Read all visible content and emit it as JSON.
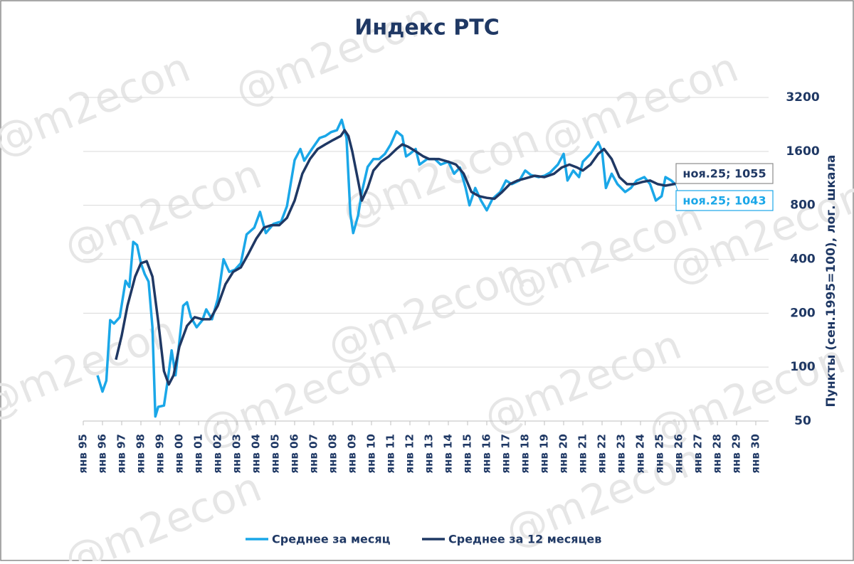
{
  "chart_data": {
    "type": "line",
    "title": "Индекс РТС",
    "watermark": "@m2econ",
    "y_label": "Пункты (сен.1995=100), лог. шкала",
    "log_scale": true,
    "grid": true,
    "legend": "bottom",
    "xlim": [
      1995,
      2030
    ],
    "xticks": [
      {
        "value": 1995,
        "label": "янв 95"
      },
      {
        "value": 1996,
        "label": "янв 96"
      },
      {
        "value": 1997,
        "label": "янв 97"
      },
      {
        "value": 1998,
        "label": "янв 98"
      },
      {
        "value": 1999,
        "label": "янв 99"
      },
      {
        "value": 2000,
        "label": "янв 00"
      },
      {
        "value": 2001,
        "label": "янв 01"
      },
      {
        "value": 2002,
        "label": "янв 02"
      },
      {
        "value": 2003,
        "label": "янв 03"
      },
      {
        "value": 2004,
        "label": "янв 04"
      },
      {
        "value": 2005,
        "label": "янв 05"
      },
      {
        "value": 2006,
        "label": "янв 06"
      },
      {
        "value": 2007,
        "label": "янв 07"
      },
      {
        "value": 2008,
        "label": "янв 08"
      },
      {
        "value": 2009,
        "label": "янв 09"
      },
      {
        "value": 2010,
        "label": "янв 10"
      },
      {
        "value": 2011,
        "label": "янв 11"
      },
      {
        "value": 2012,
        "label": "янв 12"
      },
      {
        "value": 2013,
        "label": "янв 13"
      },
      {
        "value": 2014,
        "label": "янв 14"
      },
      {
        "value": 2015,
        "label": "янв 15"
      },
      {
        "value": 2016,
        "label": "янв 16"
      },
      {
        "value": 2017,
        "label": "янв 17"
      },
      {
        "value": 2018,
        "label": "янв 18"
      },
      {
        "value": 2019,
        "label": "янв 19"
      },
      {
        "value": 2020,
        "label": "янв 20"
      },
      {
        "value": 2021,
        "label": "янв 21"
      },
      {
        "value": 2022,
        "label": "янв 22"
      },
      {
        "value": 2023,
        "label": "янв 23"
      },
      {
        "value": 2024,
        "label": "янв 24"
      },
      {
        "value": 2025,
        "label": "янв 25"
      },
      {
        "value": 2026,
        "label": "янв 26"
      },
      {
        "value": 2027,
        "label": "янв 27"
      },
      {
        "value": 2028,
        "label": "янв 28"
      },
      {
        "value": 2029,
        "label": "янв 29"
      },
      {
        "value": 2030,
        "label": "янв 30"
      }
    ],
    "ylim": [
      50,
      3200
    ],
    "yticks": [
      50,
      100,
      200,
      400,
      800,
      1600,
      3200
    ],
    "series": [
      {
        "name": "Среднее за месяц",
        "color": "#1aa7e8",
        "x": [
          1995.74,
          1996.0,
          1996.2,
          1996.4,
          1996.6,
          1996.9,
          1997.2,
          1997.4,
          1997.6,
          1997.8,
          1998.0,
          1998.2,
          1998.4,
          1998.6,
          1998.75,
          1998.9,
          1999.2,
          1999.4,
          1999.6,
          1999.8,
          2000.0,
          2000.2,
          2000.4,
          2000.6,
          2000.9,
          2001.2,
          2001.4,
          2001.7,
          2002.0,
          2002.3,
          2002.6,
          2002.9,
          2003.2,
          2003.5,
          2003.9,
          2004.2,
          2004.5,
          2004.9,
          2005.3,
          2005.6,
          2006.0,
          2006.3,
          2006.5,
          2006.9,
          2007.3,
          2007.6,
          2007.9,
          2008.2,
          2008.45,
          2008.7,
          2008.9,
          2009.05,
          2009.3,
          2009.5,
          2009.8,
          2010.1,
          2010.4,
          2010.7,
          2011.0,
          2011.3,
          2011.6,
          2011.8,
          2012.0,
          2012.3,
          2012.5,
          2012.9,
          2013.3,
          2013.6,
          2014.0,
          2014.3,
          2014.6,
          2014.9,
          2015.1,
          2015.4,
          2015.7,
          2016.0,
          2016.3,
          2016.7,
          2017.0,
          2017.3,
          2017.7,
          2018.0,
          2018.3,
          2018.7,
          2019.0,
          2019.3,
          2019.7,
          2020.0,
          2020.2,
          2020.5,
          2020.8,
          2021.0,
          2021.4,
          2021.8,
          2022.0,
          2022.2,
          2022.5,
          2022.8,
          2023.2,
          2023.5,
          2023.8,
          2024.2,
          2024.5,
          2024.8,
          2025.1,
          2025.3,
          2025.6,
          2025.83
        ],
        "values": [
          90,
          73,
          84,
          183,
          175,
          190,
          303,
          280,
          500,
          480,
          380,
          330,
          300,
          167,
          53,
          60,
          61,
          85,
          124,
          90,
          138,
          220,
          230,
          190,
          167,
          183,
          210,
          185,
          240,
          400,
          340,
          350,
          380,
          550,
          600,
          735,
          560,
          630,
          650,
          790,
          1430,
          1650,
          1420,
          1650,
          1900,
          1950,
          2050,
          2100,
          2400,
          1900,
          720,
          560,
          700,
          950,
          1310,
          1450,
          1450,
          1550,
          1750,
          2070,
          1950,
          1500,
          1550,
          1650,
          1350,
          1450,
          1450,
          1350,
          1400,
          1200,
          1300,
          1000,
          800,
          1000,
          850,
          750,
          870,
          950,
          1100,
          1050,
          1100,
          1250,
          1180,
          1150,
          1170,
          1220,
          1350,
          1550,
          1100,
          1250,
          1150,
          1400,
          1550,
          1800,
          1600,
          1000,
          1200,
          1050,
          950,
          1000,
          1100,
          1150,
          1050,
          850,
          900,
          1150,
          1100,
          1043
        ]
      },
      {
        "name": "Среднее за 12 месяцев",
        "color": "#1f3864",
        "x": [
          1996.7,
          1997.0,
          1997.3,
          1997.7,
          1998.0,
          1998.3,
          1998.6,
          1998.9,
          1999.2,
          1999.45,
          1999.7,
          2000.0,
          2000.4,
          2000.8,
          2001.2,
          2001.6,
          2002.0,
          2002.4,
          2002.8,
          2003.2,
          2003.6,
          2004.0,
          2004.4,
          2004.8,
          2005.2,
          2005.6,
          2006.0,
          2006.4,
          2006.8,
          2007.2,
          2007.6,
          2008.0,
          2008.4,
          2008.6,
          2008.8,
          2009.0,
          2009.3,
          2009.5,
          2009.8,
          2010.1,
          2010.5,
          2010.9,
          2011.3,
          2011.6,
          2011.9,
          2012.3,
          2012.7,
          2013.0,
          2013.5,
          2014.0,
          2014.4,
          2014.8,
          2015.2,
          2015.6,
          2016.0,
          2016.4,
          2016.8,
          2017.2,
          2017.6,
          2018.0,
          2018.5,
          2019.0,
          2019.5,
          2019.9,
          2020.3,
          2020.7,
          2021.0,
          2021.4,
          2021.8,
          2022.1,
          2022.5,
          2022.9,
          2023.3,
          2023.7,
          2024.1,
          2024.5,
          2024.9,
          2025.3,
          2025.83
        ],
        "values": [
          110,
          150,
          220,
          320,
          380,
          390,
          320,
          180,
          95,
          80,
          90,
          130,
          170,
          190,
          185,
          185,
          220,
          290,
          340,
          360,
          430,
          520,
          600,
          620,
          620,
          680,
          850,
          1200,
          1450,
          1650,
          1750,
          1850,
          1950,
          2100,
          1950,
          1600,
          1100,
          850,
          1000,
          1250,
          1400,
          1500,
          1650,
          1750,
          1700,
          1600,
          1500,
          1450,
          1450,
          1400,
          1350,
          1200,
          950,
          900,
          880,
          870,
          950,
          1050,
          1100,
          1130,
          1170,
          1150,
          1200,
          1300,
          1350,
          1300,
          1250,
          1350,
          1550,
          1650,
          1450,
          1150,
          1050,
          1050,
          1080,
          1100,
          1050,
          1030,
          1055
        ]
      }
    ],
    "annotations": [
      {
        "text": "ноя.25; 1055",
        "series": 1
      },
      {
        "text": "ноя.25; 1043",
        "series": 0
      }
    ]
  }
}
